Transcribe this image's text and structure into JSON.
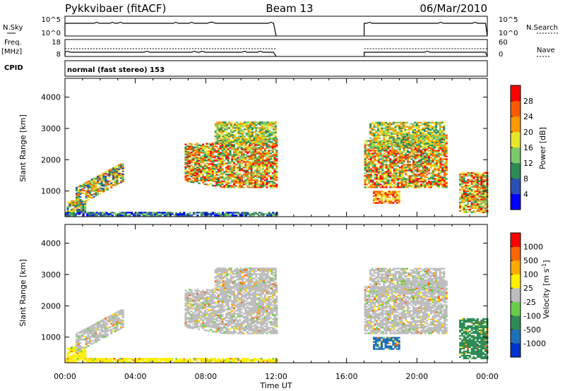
{
  "header": {
    "station": "Pykkvibaer (fitACF)",
    "beam": "Beam 13",
    "date": "06/Mar/2010"
  },
  "top_panels": {
    "nsky_label": "N.Sky",
    "nsky_ticks": [
      "10^5",
      "10^0"
    ],
    "nsearch_label": "N.Search",
    "nsearch_ticks": [
      "10^5",
      "10^0"
    ],
    "freq_label": "Freq.",
    "freq_unit": "[MHz]",
    "freq_ticks": [
      "18",
      "8"
    ],
    "nave_label": "Nave",
    "nave_ticks": [
      "60",
      "0"
    ],
    "cpid_label": "CPID",
    "cpid_text": "normal (fast stereo) 153"
  },
  "colors": {
    "power": [
      "#0000ff",
      "#2a50b4",
      "#2e8b57",
      "#7cc96a",
      "#e6e62a",
      "#ff9900",
      "#ff5a00",
      "#ff0000"
    ],
    "velocity": [
      "#0033cc",
      "#1f6fb8",
      "#2e8b57",
      "#6acd4a",
      "#bdbdbd",
      "#ffee00",
      "#ffaa00",
      "#ff6600",
      "#ff0000"
    ]
  },
  "chart_data": [
    {
      "type": "heatmap",
      "name_panel": "power",
      "ylabel": "Slant Range [km]",
      "xlabel": "Time UT",
      "x_ticks": [
        "00:00",
        "04:00",
        "08:00",
        "12:00",
        "16:00",
        "20:00",
        "00:00"
      ],
      "y_ticks": [
        "1000",
        "2000",
        "3000",
        "4000"
      ],
      "ylim": [
        180,
        4600
      ],
      "xlim": [
        0,
        24
      ],
      "colorbar_label": "Power [dB]",
      "colorbar_ticks": [
        "28",
        "24",
        "20",
        "16",
        "12",
        "8",
        "4"
      ],
      "data_gap_hours": [
        12.0,
        17.0
      ]
    },
    {
      "type": "heatmap",
      "name_panel": "velocity",
      "ylabel": "Slant Range [km]",
      "xlabel": "Time UT",
      "x_ticks": [
        "00:00",
        "04:00",
        "08:00",
        "12:00",
        "16:00",
        "20:00",
        "00:00"
      ],
      "y_ticks": [
        "1000",
        "2000",
        "3000",
        "4000"
      ],
      "ylim": [
        180,
        4600
      ],
      "xlim": [
        0,
        24
      ],
      "colorbar_label": "Velocity [m s",
      "colorbar_label_sup": "-1",
      "colorbar_ticks": [
        "1000",
        "500",
        "100",
        "25",
        "-25",
        "-100",
        "-500",
        "-1000"
      ],
      "data_gap_hours": [
        12.0,
        17.0
      ]
    }
  ],
  "x_axis_title": "Time UT"
}
